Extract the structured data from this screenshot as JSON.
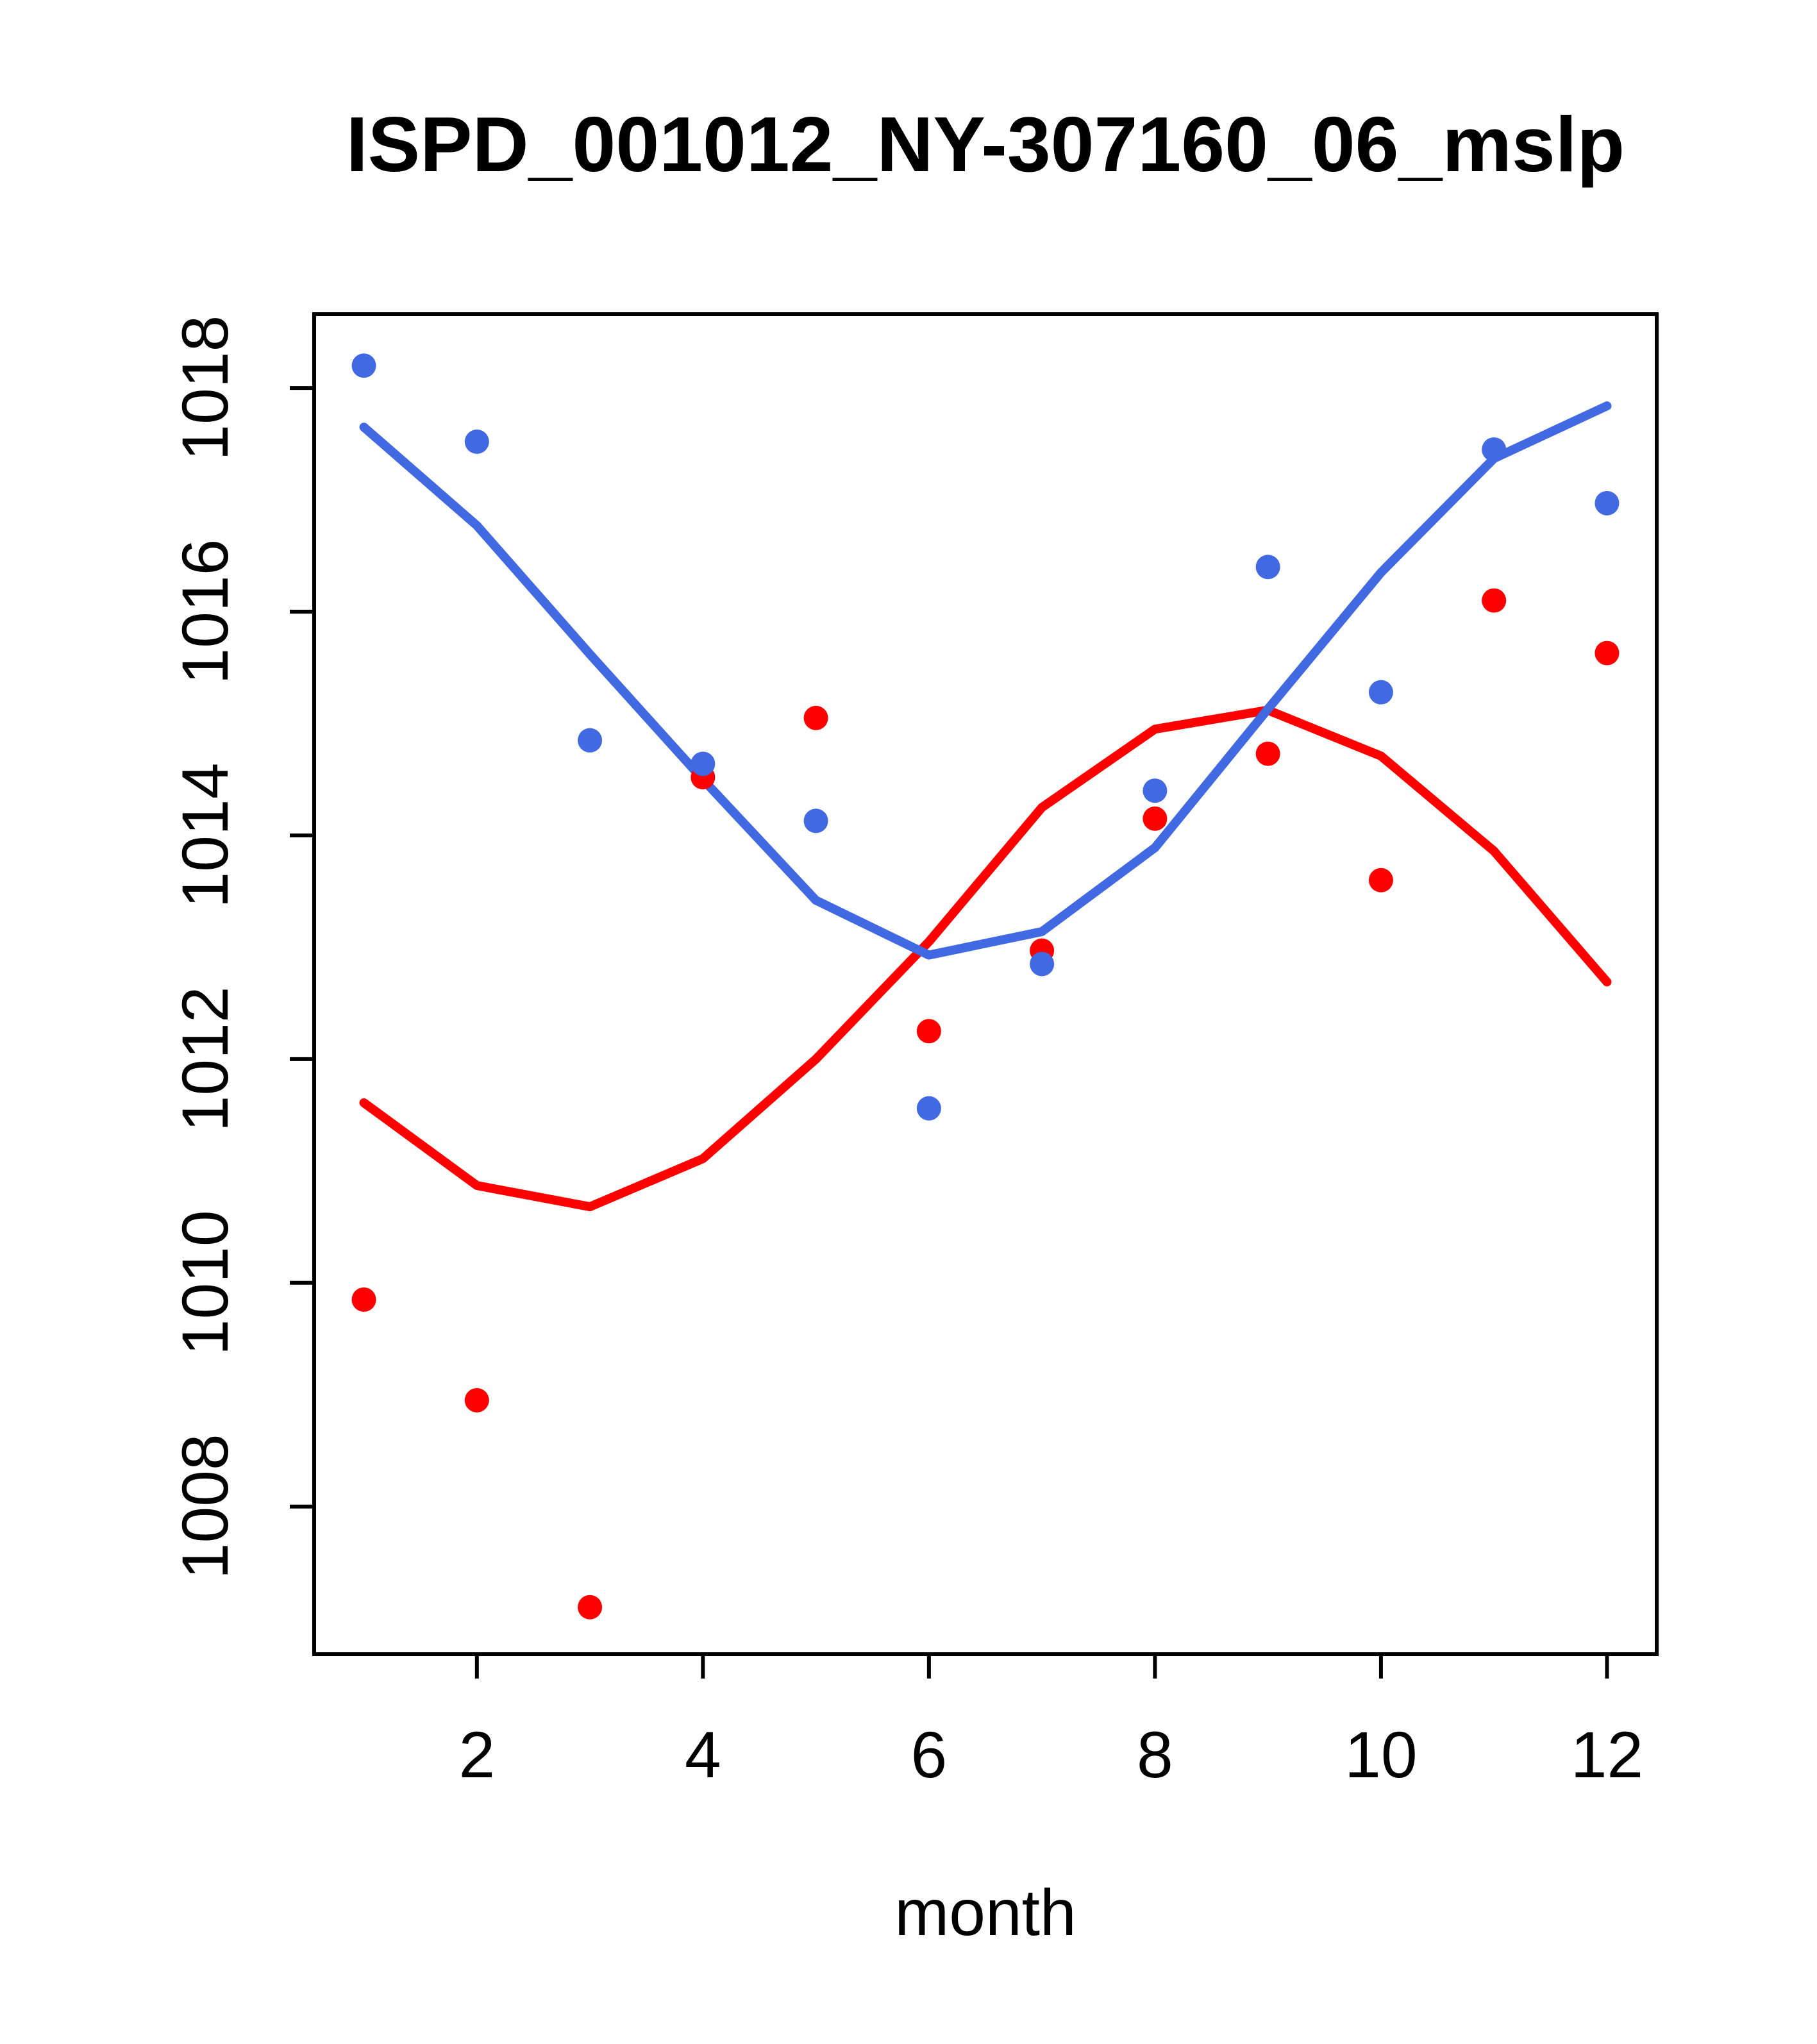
{
  "chart_data": {
    "type": "line",
    "title": "ISPD_001012_NY-307160_06_mslp",
    "xlabel": "month",
    "ylabel": "",
    "x_ticks": [
      2,
      4,
      6,
      8,
      10,
      12
    ],
    "y_ticks": [
      1008,
      1010,
      1012,
      1014,
      1016,
      1018
    ],
    "xlim": [
      0.56,
      12.44
    ],
    "ylim": [
      1006.68,
      1018.66
    ],
    "grid": false,
    "legend": "none",
    "x": [
      1,
      2,
      3,
      4,
      5,
      6,
      7,
      8,
      9,
      10,
      11,
      12
    ],
    "series": [
      {
        "name": "red-line",
        "kind": "line",
        "color": "#FF0000",
        "values": [
          1011.61,
          1010.87,
          1010.68,
          1011.11,
          1012.0,
          1013.05,
          1014.25,
          1014.95,
          1015.12,
          1014.71,
          1013.86,
          1012.69
        ]
      },
      {
        "name": "blue-line",
        "kind": "line",
        "color": "#4169E1",
        "values": [
          1017.65,
          1016.77,
          1015.62,
          1014.5,
          1013.42,
          1012.93,
          1013.14,
          1013.89,
          1015.13,
          1016.35,
          1017.37,
          1017.84
        ]
      },
      {
        "name": "red-points",
        "kind": "scatter",
        "color": "#FF0000",
        "values": [
          1009.85,
          1008.95,
          1007.1,
          1014.52,
          1015.05,
          1012.25,
          1012.97,
          1014.15,
          1014.73,
          1013.6,
          1016.1,
          1015.63
        ]
      },
      {
        "name": "blue-points",
        "kind": "scatter",
        "color": "#4169E1",
        "values": [
          1018.2,
          1017.52,
          1014.85,
          1014.64,
          1014.13,
          1011.56,
          1012.85,
          1014.4,
          1016.4,
          1015.28,
          1017.45,
          1016.97
        ]
      }
    ],
    "colors": {
      "blue": "#4169E1",
      "red": "#FF0000",
      "axis": "#000000"
    }
  }
}
